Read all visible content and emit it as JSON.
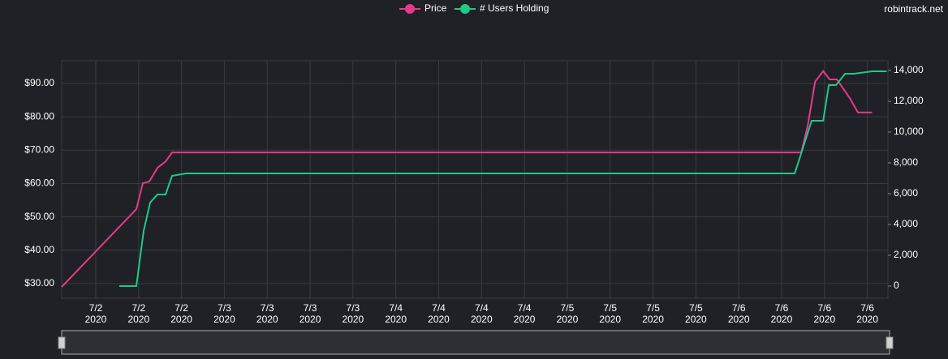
{
  "chart_data": {
    "type": "line",
    "source": "robintrack.net",
    "series": [
      {
        "name": "Price",
        "color": "#e8388a",
        "axis": "y",
        "x": [
          0.205,
          1.947,
          2.098,
          2.25,
          2.439,
          2.629,
          2.78,
          17.458,
          17.61,
          17.78,
          17.97,
          18.12,
          18.29,
          18.59,
          18.78,
          19.11
        ],
        "values": [
          29.0,
          52.3,
          60.1,
          60.6,
          64.7,
          66.6,
          69.3,
          69.3,
          77.4,
          90.5,
          93.7,
          91.2,
          91.2,
          85.6,
          81.3,
          81.3
        ]
      },
      {
        "name": "# Users Holding",
        "color": "#1ec98a",
        "axis": "y2",
        "x": [
          1.549,
          1.947,
          2.117,
          2.269,
          2.439,
          2.629,
          2.78,
          3.102,
          17.307,
          17.7,
          17.97,
          18.1,
          18.27,
          18.48,
          18.69,
          19.11,
          19.45
        ],
        "values": [
          0,
          0,
          3579,
          5421,
          5947,
          5947,
          7158,
          7316,
          7316,
          10737,
          10737,
          13053,
          13053,
          13789,
          13789,
          13947,
          13947
        ]
      }
    ],
    "xlim": [
      0.205,
      19.48
    ],
    "xticks": [
      {
        "value": 1,
        "label": "7/2",
        "year": "2020"
      },
      {
        "value": 2,
        "label": "7/2",
        "year": "2020"
      },
      {
        "value": 3,
        "label": "7/2",
        "year": "2020"
      },
      {
        "value": 4,
        "label": "7/3",
        "year": "2020"
      },
      {
        "value": 5,
        "label": "7/3",
        "year": "2020"
      },
      {
        "value": 6,
        "label": "7/3",
        "year": "2020"
      },
      {
        "value": 7,
        "label": "7/3",
        "year": "2020"
      },
      {
        "value": 8,
        "label": "7/4",
        "year": "2020"
      },
      {
        "value": 9,
        "label": "7/4",
        "year": "2020"
      },
      {
        "value": 10,
        "label": "7/4",
        "year": "2020"
      },
      {
        "value": 11,
        "label": "7/4",
        "year": "2020"
      },
      {
        "value": 12,
        "label": "7/5",
        "year": "2020"
      },
      {
        "value": 13,
        "label": "7/5",
        "year": "2020"
      },
      {
        "value": 14,
        "label": "7/5",
        "year": "2020"
      },
      {
        "value": 15,
        "label": "7/5",
        "year": "2020"
      },
      {
        "value": 16,
        "label": "7/6",
        "year": "2020"
      },
      {
        "value": 17,
        "label": "7/6",
        "year": "2020"
      },
      {
        "value": 18,
        "label": "7/6",
        "year": "2020"
      },
      {
        "value": 19,
        "label": "7/6",
        "year": "2020"
      }
    ],
    "ylim": [
      25.6,
      96.8
    ],
    "yticks": [
      {
        "value": 30,
        "label": "$30.00"
      },
      {
        "value": 40,
        "label": "$40.00"
      },
      {
        "value": 50,
        "label": "$50.00"
      },
      {
        "value": 60,
        "label": "$60.00"
      },
      {
        "value": 70,
        "label": "$70.00"
      },
      {
        "value": 80,
        "label": "$80.00"
      },
      {
        "value": 90,
        "label": "$90.00"
      }
    ],
    "y2lim": [
      -790,
      14630
    ],
    "y2ticks": [
      0,
      {
        "value": 2000,
        "label": "2,000"
      },
      {
        "value": 4000,
        "label": "4,000"
      },
      {
        "value": 6000,
        "label": "6,000"
      },
      {
        "value": 8000,
        "label": "8,000"
      },
      {
        "value": 10000,
        "label": "10,000"
      },
      {
        "value": 12000,
        "label": "12,000"
      },
      {
        "value": 14000,
        "label": "14,000"
      }
    ],
    "grid": true
  }
}
